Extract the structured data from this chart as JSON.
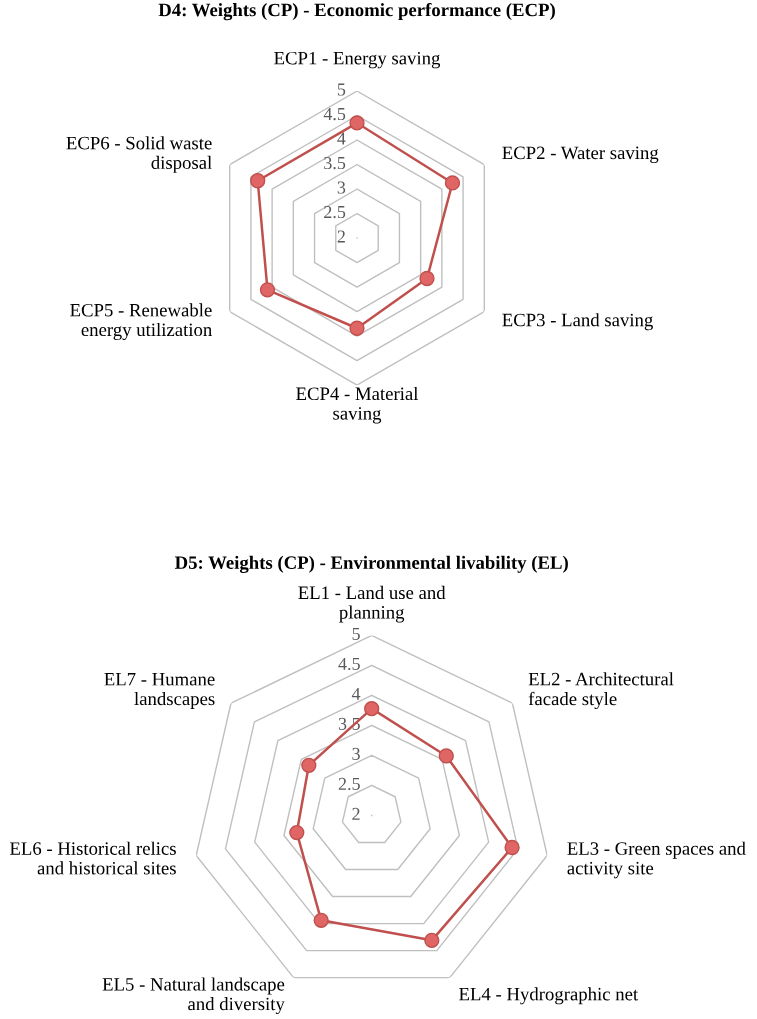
{
  "chart_data": [
    {
      "type": "radar",
      "title": "D4: Weights (CP) - Economic performance (ECP)",
      "categories": [
        "ECP1 - Energy saving",
        "ECP2 - Water saving",
        "ECP3 - Land saving",
        "ECP4 - Material\nsaving",
        "ECP5 - Renewable\nenergy utilization",
        "ECP6 - Solid waste\ndisposal"
      ],
      "series": [
        {
          "color": "#c0504d",
          "values": [
            4.35,
            4.25,
            3.65,
            3.84,
            4.11,
            4.34
          ]
        }
      ],
      "ylim": [
        2,
        5
      ],
      "yticks": [
        2,
        2.5,
        3,
        3.5,
        4,
        4.5,
        5
      ],
      "grid": true,
      "marker": "circle"
    },
    {
      "type": "radar",
      "title": "D5: Weights (CP) - Environmental livability (EL)",
      "categories": [
        "EL1 - Land use and\nplanning",
        "EL2 - Architectural\nfacade style",
        "EL3 - Green spaces and\nactivity site",
        "EL4 - Hydrographic net",
        "EL5 - Natural landscape\nand diversity",
        "EL6 - Historical relics\nand historical sites",
        "EL7 - Humane\nlandscapes"
      ],
      "series": [
        {
          "color": "#c0504d",
          "values": [
            3.78,
            3.59,
            4.4,
            4.31,
            3.94,
            3.28,
            3.34
          ]
        }
      ],
      "ylim": [
        2,
        5
      ],
      "yticks": [
        2,
        2.5,
        3,
        3.5,
        4,
        4.5,
        5
      ],
      "grid": true,
      "marker": "circle"
    }
  ]
}
